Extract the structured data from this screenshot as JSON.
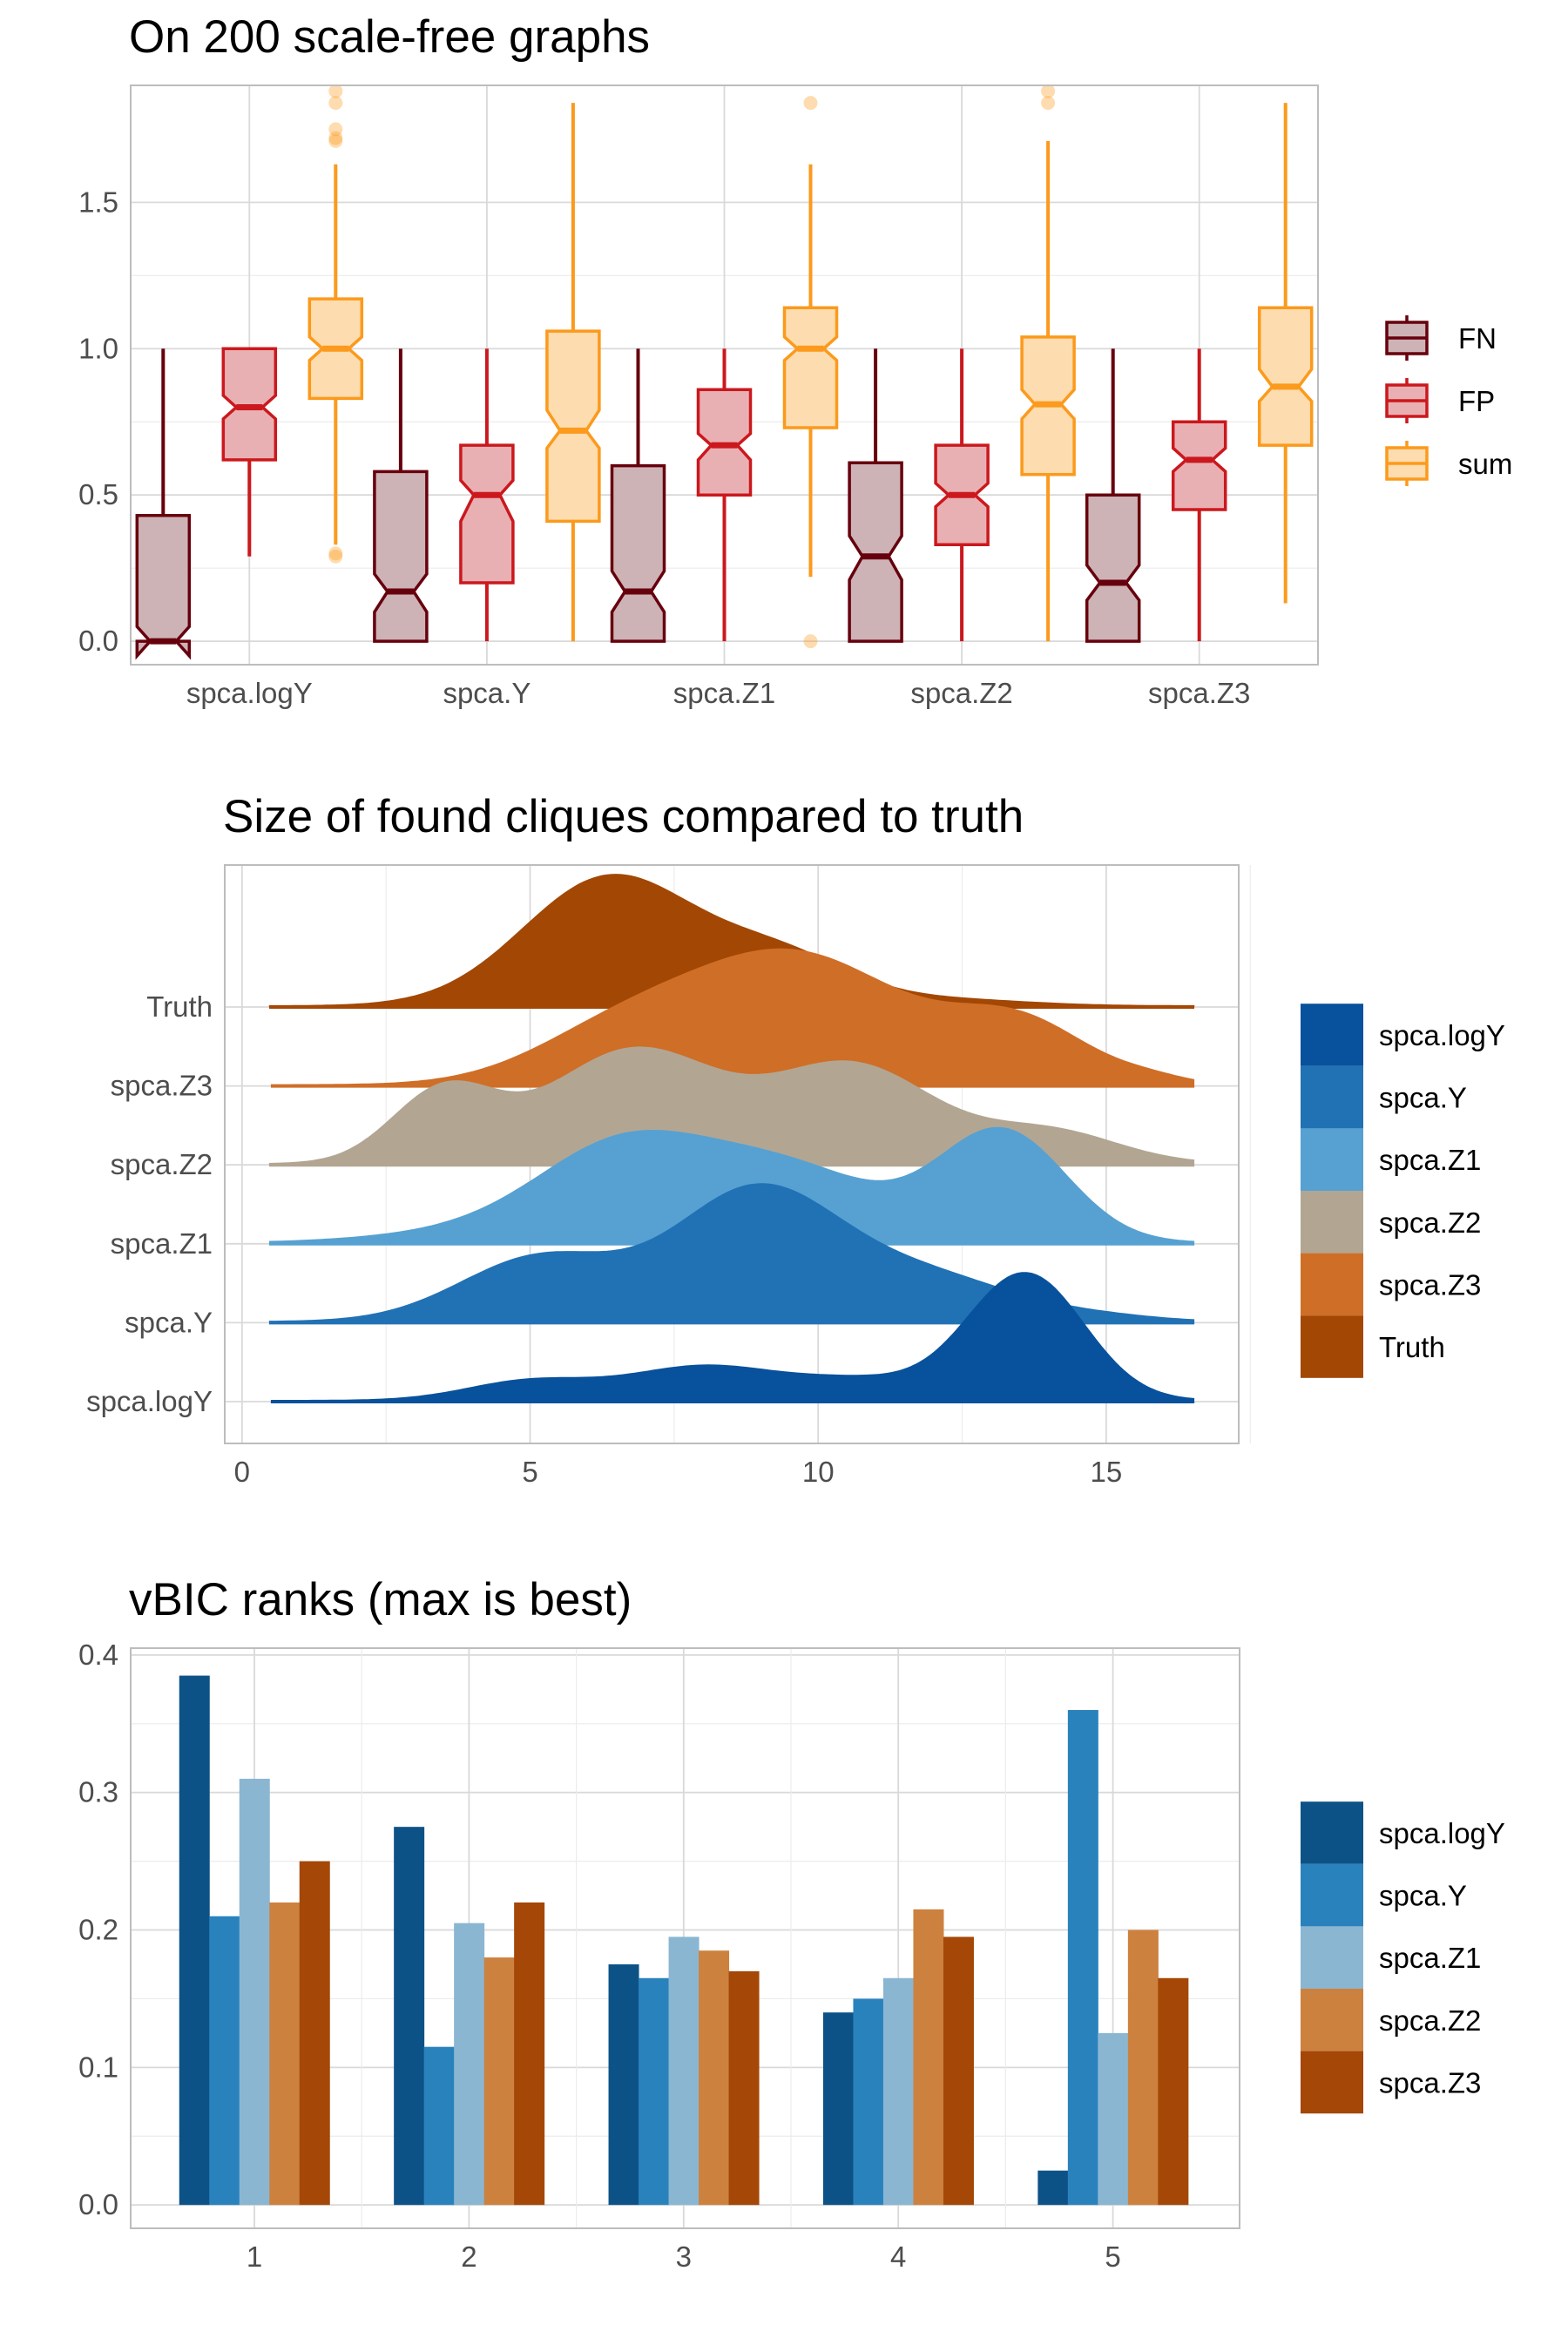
{
  "chart_data": [
    {
      "type": "boxplot",
      "title": "On 200 scale-free graphs",
      "xlabel": "",
      "ylabel": "",
      "categories": [
        "spca.logY",
        "spca.Y",
        "spca.Z1",
        "spca.Z2",
        "spca.Z3"
      ],
      "ylim": [
        -0.08,
        1.9
      ],
      "yticks": [
        0.0,
        0.5,
        1.0,
        1.5
      ],
      "ytick_labels": [
        "0.0",
        "0.5",
        "1.0",
        "1.5"
      ],
      "legend_position": "right",
      "series": [
        {
          "name": "FN",
          "color": "#67000d",
          "fill": "#cdb3b6",
          "boxes": [
            {
              "min": 0.0,
              "q1": 0.0,
              "median": 0.0,
              "q3": 0.43,
              "max": 1.0,
              "notch": [
                -0.05,
                0.05
              ],
              "outliers": []
            },
            {
              "min": 0.0,
              "q1": 0.0,
              "median": 0.17,
              "q3": 0.58,
              "max": 1.0,
              "notch": [
                0.1,
                0.23
              ],
              "outliers": []
            },
            {
              "min": 0.0,
              "q1": 0.0,
              "median": 0.17,
              "q3": 0.6,
              "max": 1.0,
              "notch": [
                0.1,
                0.24
              ],
              "outliers": []
            },
            {
              "min": 0.0,
              "q1": 0.0,
              "median": 0.29,
              "q3": 0.61,
              "max": 1.0,
              "notch": [
                0.21,
                0.36
              ],
              "outliers": []
            },
            {
              "min": 0.0,
              "q1": 0.0,
              "median": 0.2,
              "q3": 0.5,
              "max": 1.0,
              "notch": [
                0.14,
                0.26
              ],
              "outliers": []
            }
          ]
        },
        {
          "name": "FP",
          "color": "#cb181d",
          "fill": "#e9b0b3",
          "boxes": [
            {
              "min": 0.29,
              "q1": 0.62,
              "median": 0.8,
              "q3": 1.0,
              "max": 1.0,
              "notch": [
                0.76,
                0.84
              ],
              "outliers": []
            },
            {
              "min": 0.0,
              "q1": 0.2,
              "median": 0.5,
              "q3": 0.67,
              "max": 1.0,
              "notch": [
                0.41,
                0.55
              ],
              "outliers": []
            },
            {
              "min": 0.0,
              "q1": 0.5,
              "median": 0.67,
              "q3": 0.86,
              "max": 1.0,
              "notch": [
                0.62,
                0.71
              ],
              "outliers": []
            },
            {
              "min": 0.0,
              "q1": 0.33,
              "median": 0.5,
              "q3": 0.67,
              "max": 1.0,
              "notch": [
                0.46,
                0.54
              ],
              "outliers": []
            },
            {
              "min": 0.0,
              "q1": 0.45,
              "median": 0.62,
              "q3": 0.75,
              "max": 1.0,
              "notch": [
                0.58,
                0.66
              ],
              "outliers": []
            }
          ]
        },
        {
          "name": "sum",
          "color": "#fb9a1c",
          "fill": "#fddcaf",
          "boxes": [
            {
              "min": 0.33,
              "q1": 0.83,
              "median": 1.0,
              "q3": 1.17,
              "max": 1.63,
              "notch": [
                0.96,
                1.04
              ],
              "outliers": [
                0.29,
                0.3,
                1.71,
                1.72,
                1.75,
                1.84,
                1.88
              ]
            },
            {
              "min": 0.0,
              "q1": 0.41,
              "median": 0.72,
              "q3": 1.06,
              "max": 1.84,
              "notch": [
                0.66,
                0.79
              ],
              "outliers": []
            },
            {
              "min": 0.22,
              "q1": 0.73,
              "median": 1.0,
              "q3": 1.14,
              "max": 1.63,
              "notch": [
                0.96,
                1.04
              ],
              "outliers": [
                0.0,
                1.84
              ]
            },
            {
              "min": 0.0,
              "q1": 0.57,
              "median": 0.81,
              "q3": 1.04,
              "max": 1.71,
              "notch": [
                0.76,
                0.86
              ],
              "outliers": [
                1.84,
                1.88
              ]
            },
            {
              "min": 0.13,
              "q1": 0.67,
              "median": 0.87,
              "q3": 1.14,
              "max": 1.84,
              "notch": [
                0.82,
                0.93
              ],
              "outliers": []
            }
          ]
        }
      ]
    },
    {
      "type": "ridgeline",
      "title": "Size of found cliques compared to truth",
      "xlabel": "",
      "ylabel": "",
      "xlim": [
        -0.3,
        17.3
      ],
      "xticks": [
        0,
        5,
        10,
        15
      ],
      "xtick_labels": [
        "0",
        "5",
        "10",
        "15"
      ],
      "x_range": [
        0.5,
        16.5
      ],
      "legend_position": "right",
      "series": [
        {
          "name": "spca.logY",
          "color": "#08519c",
          "scale": 0.91,
          "peaks": [
            [
              5.0,
              1.1,
              0.15
            ],
            [
              8.0,
              1.3,
              0.26
            ],
            [
              10.8,
              1.2,
              0.15
            ],
            [
              13.6,
              1.0,
              0.98
            ]
          ]
        },
        {
          "name": "spca.Y",
          "color": "#2171b5",
          "scale": 0.91,
          "peaks": [
            [
              5.2,
              1.4,
              0.5
            ],
            [
              8.9,
              1.4,
              0.98
            ],
            [
              11.8,
              1.6,
              0.35
            ],
            [
              15.0,
              1.0,
              0.03
            ]
          ]
        },
        {
          "name": "spca.Z1",
          "color": "#56a1d2",
          "scale": 0.91,
          "peaks": [
            [
              3.8,
              1.6,
              0.07
            ],
            [
              6.6,
              1.5,
              0.72
            ],
            [
              9.5,
              1.6,
              0.55
            ],
            [
              13.2,
              1.1,
              0.85
            ]
          ]
        },
        {
          "name": "spca.Z2",
          "color": "#b2a693",
          "scale": 0.91,
          "peaks": [
            [
              3.5,
              0.9,
              0.55
            ],
            [
              6.8,
              1.5,
              0.88
            ],
            [
              10.6,
              1.4,
              0.75
            ],
            [
              14.0,
              1.2,
              0.25
            ]
          ]
        },
        {
          "name": "spca.Z3",
          "color": "#cf6e27",
          "scale": 0.91,
          "peaks": [
            [
              6.5,
              1.5,
              0.35
            ],
            [
              9.6,
              1.9,
              1.0
            ],
            [
              13.5,
              1.2,
              0.45
            ],
            [
              15.8,
              0.6,
              0.04
            ]
          ]
        },
        {
          "name": "Truth",
          "color": "#a34704",
          "scale": 0.91,
          "peaks": [
            [
              6.4,
              1.5,
              1.0
            ],
            [
              9.4,
              1.2,
              0.35
            ],
            [
              12.2,
              1.4,
              0.05
            ]
          ]
        }
      ],
      "ytick_labels": [
        "spca.logY",
        "spca.Y",
        "spca.Z1",
        "spca.Z2",
        "spca.Z3",
        "Truth"
      ]
    },
    {
      "type": "bar",
      "title": "vBIC ranks (max is best)",
      "xlabel": "",
      "ylabel": "",
      "categories": [
        "1",
        "2",
        "3",
        "4",
        "5"
      ],
      "ylim": [
        -0.017,
        0.405
      ],
      "yticks": [
        0.0,
        0.1,
        0.2,
        0.3,
        0.4
      ],
      "ytick_labels": [
        "0.0",
        "0.1",
        "0.2",
        "0.3",
        "0.4"
      ],
      "legend_position": "right",
      "series": [
        {
          "name": "spca.logY",
          "color": "#0d5287",
          "values": [
            0.385,
            0.275,
            0.175,
            0.14,
            0.025
          ]
        },
        {
          "name": "spca.Y",
          "color": "#2a82bd",
          "values": [
            0.21,
            0.115,
            0.165,
            0.15,
            0.36
          ]
        },
        {
          "name": "spca.Z1",
          "color": "#8bb6d2",
          "values": [
            0.31,
            0.205,
            0.195,
            0.165,
            0.125
          ]
        },
        {
          "name": "spca.Z2",
          "color": "#cd813f",
          "values": [
            0.22,
            0.18,
            0.185,
            0.215,
            0.2
          ]
        },
        {
          "name": "spca.Z3",
          "color": "#a44707",
          "values": [
            0.25,
            0.22,
            0.17,
            0.195,
            0.165
          ]
        }
      ]
    }
  ]
}
